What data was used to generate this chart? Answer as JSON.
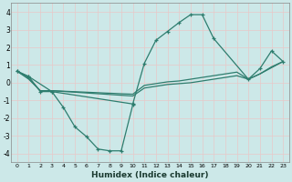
{
  "xlabel": "Humidex (Indice chaleur)",
  "bg_color": "#cce8e8",
  "grid_color": "#e8c8c8",
  "line_color": "#2e7d6e",
  "xlim": [
    -0.5,
    23.5
  ],
  "ylim": [
    -4.5,
    4.5
  ],
  "yticks": [
    -4,
    -3,
    -2,
    -1,
    0,
    1,
    2,
    3,
    4
  ],
  "xticks": [
    0,
    1,
    2,
    3,
    4,
    5,
    6,
    7,
    8,
    9,
    10,
    11,
    12,
    13,
    14,
    15,
    16,
    17,
    18,
    19,
    20,
    21,
    22,
    23
  ],
  "lines": [
    {
      "x": [
        0,
        1,
        2,
        3,
        10,
        11,
        12,
        13,
        14,
        15,
        16,
        17,
        20,
        21,
        22,
        23
      ],
      "y": [
        0.65,
        0.35,
        -0.5,
        -0.5,
        -1.2,
        1.1,
        2.4,
        2.9,
        3.4,
        3.85,
        3.85,
        2.5,
        0.2,
        0.8,
        1.8,
        1.2
      ],
      "marker": true
    },
    {
      "x": [
        0,
        1,
        3,
        4,
        5,
        6,
        7,
        8,
        9,
        10
      ],
      "y": [
        0.65,
        0.35,
        -0.5,
        -1.4,
        -2.5,
        -3.05,
        -3.75,
        -3.85,
        -3.85,
        -1.25
      ],
      "marker": true
    },
    {
      "x": [
        0,
        1,
        2,
        3,
        10,
        11,
        12,
        13,
        14,
        15,
        16,
        17,
        18,
        19,
        20,
        21,
        22,
        23
      ],
      "y": [
        0.65,
        0.25,
        -0.45,
        -0.45,
        -0.75,
        -0.3,
        -0.2,
        -0.1,
        -0.05,
        0.0,
        0.1,
        0.2,
        0.3,
        0.4,
        0.2,
        0.5,
        0.85,
        1.2
      ],
      "marker": false
    },
    {
      "x": [
        0,
        1,
        2,
        3,
        10,
        11,
        12,
        13,
        14,
        15,
        16,
        17,
        18,
        19,
        20,
        21,
        22,
        23
      ],
      "y": [
        0.65,
        0.2,
        -0.45,
        -0.45,
        -0.65,
        -0.15,
        -0.05,
        0.05,
        0.1,
        0.2,
        0.3,
        0.4,
        0.5,
        0.6,
        0.2,
        0.5,
        0.9,
        1.2
      ],
      "marker": false
    }
  ]
}
